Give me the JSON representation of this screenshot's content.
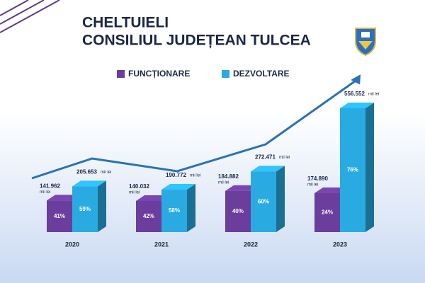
{
  "chart_data": {
    "type": "bar3d",
    "title": "CHELTUIELI",
    "subtitle": "CONSILIUL JUDEȚEAN TULCEA",
    "unit": "mii lei",
    "categories": [
      "2020",
      "2021",
      "2022",
      "2023"
    ],
    "series": [
      {
        "name": "FUNCȚIONARE",
        "color": "#6b3d9c",
        "values": [
          141962,
          140032,
          184882,
          174890
        ],
        "value_labels": [
          "141.962",
          "140.032",
          "184.882",
          "174.890"
        ],
        "percents": [
          41,
          42,
          40,
          24
        ],
        "percent_labels": [
          "41%",
          "42%",
          "40%",
          "24%"
        ]
      },
      {
        "name": "DEZVOLTARE",
        "color": "#29abe2",
        "values": [
          205653,
          190772,
          272471,
          556552
        ],
        "value_labels": [
          "205.653",
          "190.772",
          "272.471",
          "556.552"
        ],
        "percents": [
          59,
          58,
          60,
          76
        ],
        "percent_labels": [
          "59%",
          "58%",
          "60%",
          "76%"
        ]
      }
    ]
  }
}
